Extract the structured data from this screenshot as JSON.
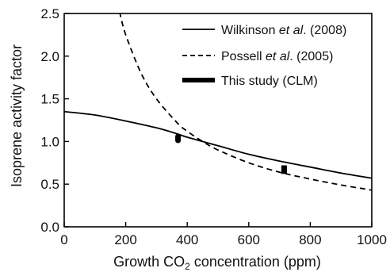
{
  "chart_data": {
    "type": "line",
    "xlabel": {
      "prefix": "Growth CO",
      "sub": "2",
      "suffix": " concentration (ppm)"
    },
    "ylabel": "Isoprene activity factor",
    "xlim": [
      0,
      1000
    ],
    "ylim": [
      0.0,
      2.5
    ],
    "x_ticks": [
      0,
      200,
      400,
      600,
      800,
      1000
    ],
    "x_tick_labels": [
      "0",
      "200",
      "400",
      "600",
      "800",
      "1000"
    ],
    "y_ticks": [
      0.0,
      0.5,
      1.0,
      1.5,
      2.0,
      2.5
    ],
    "y_tick_labels": [
      "0.0",
      "0.5",
      "1.0",
      "1.5",
      "2.0",
      "2.5"
    ],
    "grid": false,
    "legend_position": "top-right",
    "series": [
      {
        "name_parts": {
          "pre": "Wilkinson ",
          "italic": "et al",
          "post": ". (2008)"
        },
        "style": "solid",
        "color": "#000000",
        "x": [
          0,
          100,
          200,
          300,
          367,
          400,
          500,
          600,
          700,
          800,
          900,
          1000
        ],
        "y": [
          1.35,
          1.31,
          1.24,
          1.16,
          1.09,
          1.05,
          0.95,
          0.85,
          0.77,
          0.7,
          0.63,
          0.57
        ]
      },
      {
        "name_parts": {
          "pre": "Possell ",
          "italic": "et al",
          "post": ". (2005)"
        },
        "style": "dashed",
        "color": "#000000",
        "x": [
          180,
          200,
          250,
          300,
          367,
          400,
          450,
          500,
          600,
          700,
          800,
          900,
          1000
        ],
        "y": [
          2.52,
          2.25,
          1.8,
          1.5,
          1.22,
          1.12,
          1.0,
          0.9,
          0.75,
          0.64,
          0.56,
          0.49,
          0.43
        ]
      }
    ],
    "markers": {
      "name": "This study (CLM)",
      "color": "#000000",
      "points": [
        {
          "x": 370,
          "y_low": 0.98,
          "y_high": 1.09
        },
        {
          "x": 715,
          "y_low": 0.62,
          "y_high": 0.72
        }
      ]
    }
  }
}
